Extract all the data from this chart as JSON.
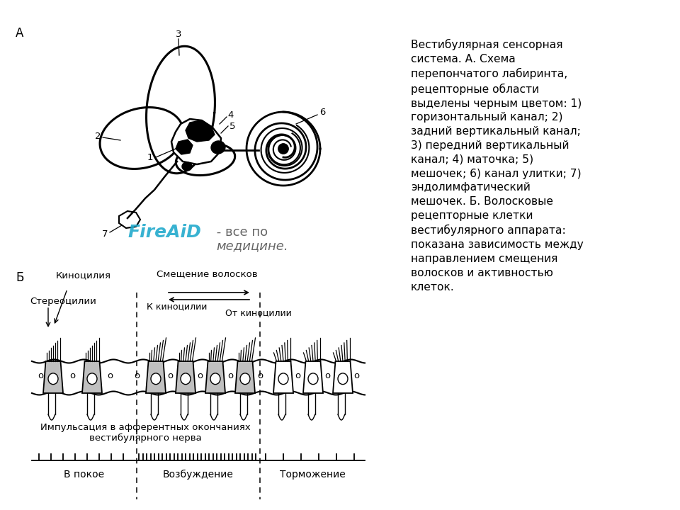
{
  "bg_color": "#ffffff",
  "fig_width": 9.6,
  "fig_height": 7.2,
  "dpi": 100,
  "description": "Вестибулярная сенсорная\nсистема. А. Схема\nперепончатого лабиринта,\nрецепторные области\nвыделены черным цветом: 1)\nгоризонтальный канал; 2)\nзадний вертикальный канал;\n3) передний вертикальный\nканал; 4) маточка; 5)\nмешочек; 6) канал улитки; 7)\nэндолимфатический\nмешочек. Б. Волосковые\nрецепторные клетки\nвестибулярного аппарата:\nпоказана зависимость между\nнаправлением смещения\nволосков и активностью\nклеток.",
  "label_A": "А",
  "label_B": "Б",
  "label_kinocilia": "Киноцилия",
  "label_shift": "Смещение волосков",
  "label_stereocilia": "Стереоцилии",
  "label_to_kino": "К киноцилии",
  "label_from_kino": "От киноцилии",
  "label_impulse": "Импульсация в афферентных окончаниях\nвестибулярного нерва",
  "label_rest": "В покое",
  "label_excite": "Возбуждение",
  "label_inhibit": "Торможение"
}
